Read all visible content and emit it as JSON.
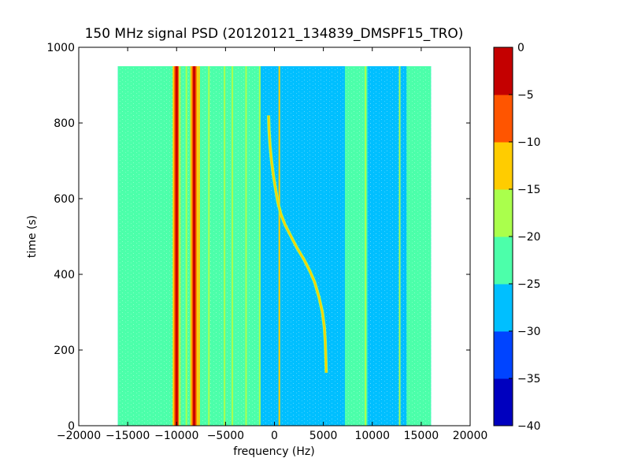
{
  "chart_data": {
    "type": "heatmap",
    "title": "150 MHz signal PSD (20120121_134839_DMSPF15_TRO)",
    "xlabel": "frequency (Hz)",
    "ylabel": "time (s)",
    "xlim": [
      -20000,
      20000
    ],
    "ylim": [
      0,
      1000
    ],
    "x_ticks": [
      "−20000",
      "−15000",
      "−10000",
      "−5000",
      "0",
      "5000",
      "10000",
      "15000",
      "20000"
    ],
    "x_tick_values": [
      -20000,
      -15000,
      -10000,
      -5000,
      0,
      5000,
      10000,
      15000,
      20000
    ],
    "y_ticks": [
      "0",
      "200",
      "400",
      "600",
      "800",
      "1000"
    ],
    "y_tick_values": [
      0,
      200,
      400,
      600,
      800,
      1000
    ],
    "data_extent": {
      "x": [
        -16000,
        16000
      ],
      "y": [
        0,
        950
      ]
    },
    "colorbar": {
      "range": [
        -40,
        0
      ],
      "levels": [
        -40,
        -35,
        -30,
        -25,
        -20,
        -15,
        -10,
        -5,
        0
      ],
      "tick_labels": [
        "−40",
        "−35",
        "−30",
        "−25",
        "−20",
        "−15",
        "−10",
        "−5",
        "0"
      ],
      "colors": [
        "#0000bf",
        "#0044ff",
        "#00bfff",
        "#4cffaa",
        "#aaff4c",
        "#ffcc00",
        "#ff5500",
        "#c40000"
      ]
    },
    "background_level": -27,
    "background_bands": [
      {
        "x": [
          -16000,
          -1500
        ],
        "level": -23
      },
      {
        "x": [
          7200,
          9500
        ],
        "level": -23
      },
      {
        "x": [
          13500,
          16000
        ],
        "level": -23
      }
    ],
    "lines": [
      {
        "x": -10000,
        "level": -3
      },
      {
        "x": -9700,
        "level": -17
      },
      {
        "x": -9000,
        "level": -17
      },
      {
        "x": -8200,
        "level": -2
      },
      {
        "x": -7700,
        "level": -12
      },
      {
        "x": -6700,
        "level": -17
      },
      {
        "x": -5100,
        "level": -17
      },
      {
        "x": -4300,
        "level": -17
      },
      {
        "x": -2900,
        "level": -17
      },
      {
        "x": -1500,
        "level": -17
      },
      {
        "x": 500,
        "level": -13
      },
      {
        "x": 9300,
        "level": -17
      },
      {
        "x": 12800,
        "level": -17
      }
    ],
    "series": [
      {
        "x": [
          5300,
          5250,
          5200,
          5100,
          4900,
          4550,
          4100,
          3600,
          3000,
          2300,
          1700,
          1100,
          650,
          350,
          150,
          -100,
          -300,
          -450,
          -550,
          -600
        ],
        "y": [
          140,
          180,
          220,
          260,
          300,
          340,
          380,
          410,
          440,
          470,
          500,
          530,
          560,
          590,
          620,
          660,
          700,
          740,
          780,
          820
        ],
        "level": -15
      }
    ]
  }
}
